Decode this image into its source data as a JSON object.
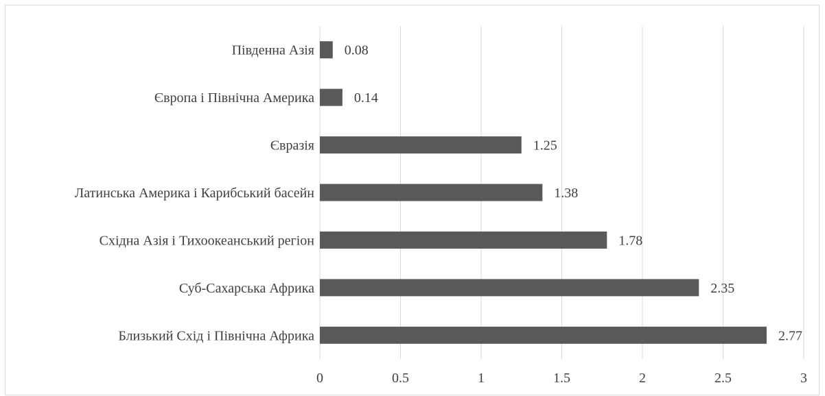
{
  "chart_data": {
    "type": "bar",
    "orientation": "horizontal",
    "categories": [
      "Південна Азія",
      "Європа і Північна Америка",
      "Євразія",
      "Латинська Америка і Карибський басейн",
      "Східна Азія і Тихоокеанський регіон",
      "Суб-Сахарська Африка",
      "Близький Схід і Північна Африка"
    ],
    "values": [
      0.08,
      0.14,
      1.25,
      1.38,
      1.78,
      2.35,
      2.77
    ],
    "data_labels": [
      "0.08",
      "0.14",
      "1.25",
      "1.38",
      "1.78",
      "2.35",
      "2.77"
    ],
    "xlim": [
      0,
      3
    ],
    "x_ticks": [
      0,
      0.5,
      1,
      1.5,
      2,
      2.5,
      3
    ],
    "x_tick_labels": [
      "0",
      "0.5",
      "1",
      "1.5",
      "2",
      "2.5",
      "3"
    ],
    "grid": "vertical",
    "bar_color": "#595959",
    "grid_color": "#d9d9d9",
    "text_color": "#404040",
    "legend": "none",
    "title": "",
    "xlabel": "",
    "ylabel": ""
  }
}
